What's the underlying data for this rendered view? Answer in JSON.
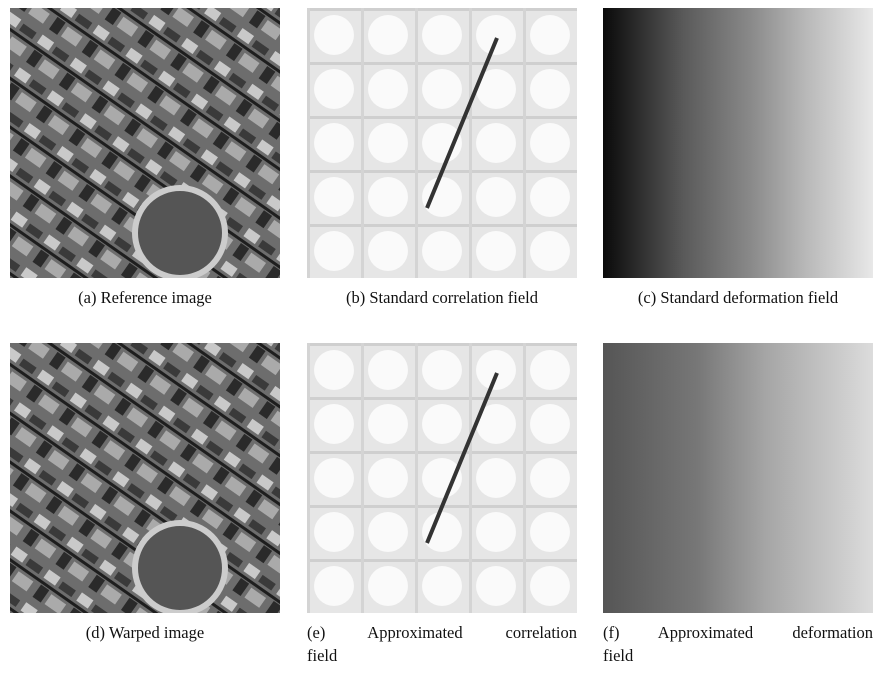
{
  "figure": {
    "panels": [
      {
        "caption": [
          "(a) Reference image"
        ]
      },
      {
        "caption": [
          "(b) Standard correlation field"
        ]
      },
      {
        "caption": [
          "(c) Standard deformation field"
        ]
      },
      {
        "caption": [
          "(d) Warped image"
        ]
      },
      {
        "caption": [
          "(e) Approximated correlation",
          "field"
        ]
      },
      {
        "caption": [
          "(f) Approximated deformation",
          "field"
        ]
      }
    ]
  }
}
